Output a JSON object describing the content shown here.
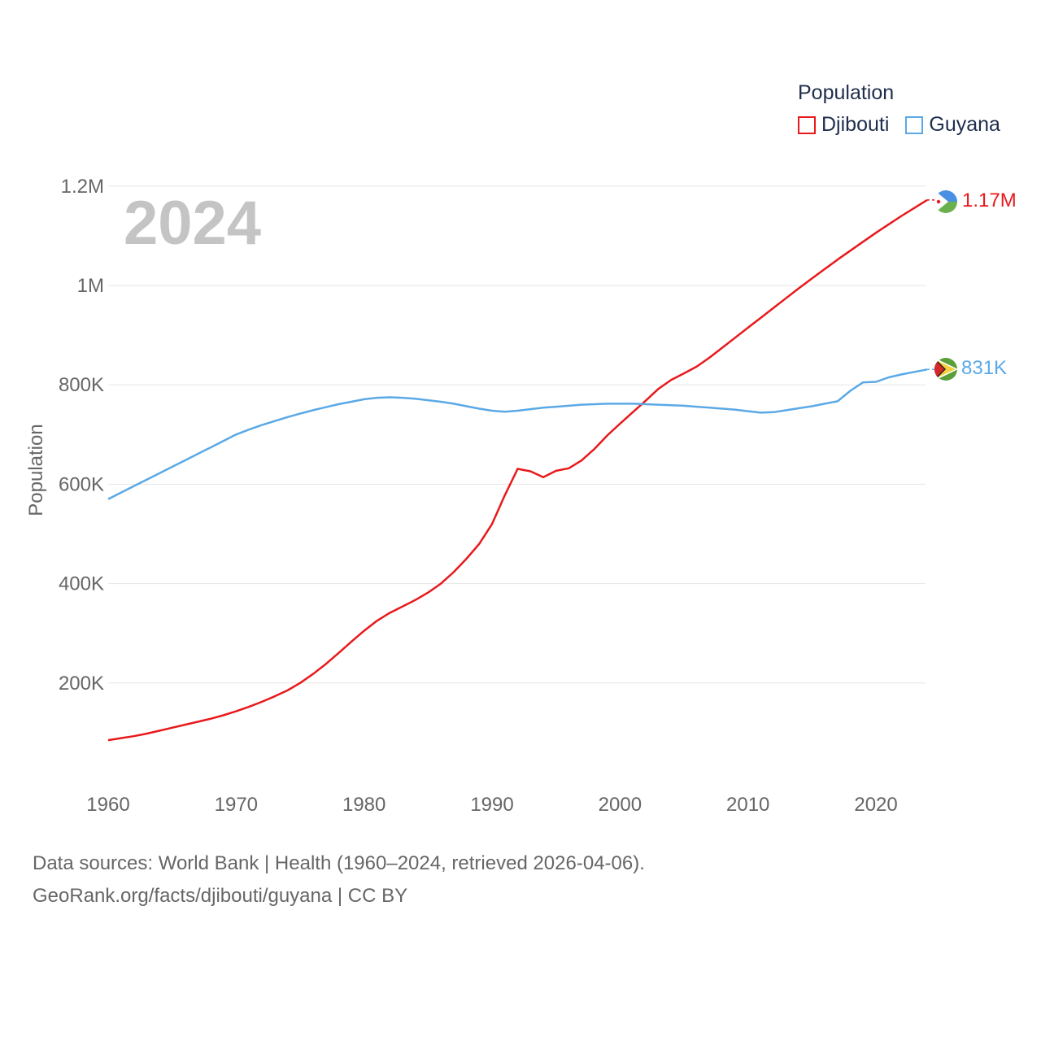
{
  "chart_data": {
    "type": "line",
    "current_year_label": "2024",
    "ylabel": "Population",
    "xlabel": "",
    "xlim": [
      1960,
      2024
    ],
    "ylim": [
      0,
      1230000
    ],
    "x_ticks": [
      {
        "value": 1960,
        "label": "1960"
      },
      {
        "value": 1970,
        "label": "1970"
      },
      {
        "value": 1980,
        "label": "1980"
      },
      {
        "value": 1990,
        "label": "1990"
      },
      {
        "value": 2000,
        "label": "2000"
      },
      {
        "value": 2010,
        "label": "2010"
      },
      {
        "value": 2020,
        "label": "2020"
      }
    ],
    "y_ticks": [
      {
        "value": 200000,
        "label": "200K"
      },
      {
        "value": 400000,
        "label": "400K"
      },
      {
        "value": 600000,
        "label": "600K"
      },
      {
        "value": 800000,
        "label": "800K"
      },
      {
        "value": 1000000,
        "label": "1M"
      },
      {
        "value": 1200000,
        "label": "1.2M"
      }
    ],
    "legend": {
      "title": "Population",
      "position": "top-right"
    },
    "x": [
      1960,
      1961,
      1962,
      1963,
      1964,
      1965,
      1966,
      1967,
      1968,
      1969,
      1970,
      1971,
      1972,
      1973,
      1974,
      1975,
      1976,
      1977,
      1978,
      1979,
      1980,
      1981,
      1982,
      1983,
      1984,
      1985,
      1986,
      1987,
      1988,
      1989,
      1990,
      1991,
      1992,
      1993,
      1994,
      1995,
      1996,
      1997,
      1998,
      1999,
      2000,
      2001,
      2002,
      2003,
      2004,
      2005,
      2006,
      2007,
      2008,
      2009,
      2010,
      2011,
      2012,
      2013,
      2014,
      2015,
      2016,
      2017,
      2018,
      2019,
      2020,
      2021,
      2022,
      2023,
      2024
    ],
    "series": [
      {
        "name": "Djibouti",
        "color": "#e8191c",
        "end_label": "1.17M",
        "values": [
          85000,
          89000,
          93000,
          98000,
          104000,
          110000,
          116000,
          122000,
          128000,
          135000,
          143000,
          152000,
          162000,
          173000,
          185000,
          200000,
          218000,
          238000,
          260000,
          283000,
          305000,
          325000,
          341000,
          354000,
          367000,
          382000,
          400000,
          423000,
          450000,
          480000,
          520000,
          578000,
          631000,
          626000,
          614000,
          627000,
          632000,
          648000,
          671000,
          698000,
          722000,
          745000,
          768000,
          792000,
          810000,
          823000,
          837000,
          855000,
          875000,
          895000,
          915000,
          935000,
          955000,
          975000,
          995000,
          1014000,
          1033000,
          1052000,
          1070000,
          1088000,
          1106000,
          1123000,
          1140000,
          1156000,
          1172000
        ]
      },
      {
        "name": "Guyana",
        "color": "#5aa9e6",
        "end_label": "831K",
        "values": [
          570000,
          583000,
          596000,
          609000,
          622000,
          635000,
          648000,
          661000,
          674000,
          687000,
          700000,
          710000,
          719000,
          727000,
          735000,
          742000,
          749000,
          755000,
          761000,
          766000,
          771000,
          774000,
          775000,
          774000,
          772000,
          769000,
          766000,
          762000,
          757000,
          752000,
          748000,
          746000,
          748000,
          751000,
          754000,
          756000,
          758000,
          760000,
          761000,
          762000,
          762000,
          762000,
          761000,
          760000,
          759000,
          758000,
          756000,
          754000,
          752000,
          750000,
          747000,
          744000,
          745000,
          749000,
          753000,
          757000,
          762000,
          767000,
          788000,
          805000,
          806000,
          815000,
          821000,
          826000,
          831000
        ]
      }
    ]
  },
  "sources": {
    "line1": "Data sources: World Bank | Health (1960–2024, retrieved 2026-04-06).",
    "line2": "GeoRank.org/facts/djibouti/guyana | CC BY"
  }
}
